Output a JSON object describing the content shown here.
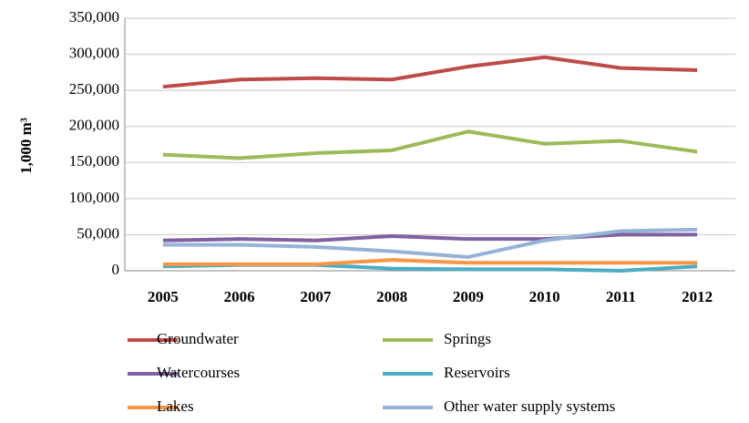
{
  "chart_data": {
    "type": "line",
    "y_label": "1,000 m³",
    "categories": [
      "2005",
      "2006",
      "2007",
      "2008",
      "2009",
      "2010",
      "2011",
      "2012"
    ],
    "series": [
      {
        "name": "Groundwater",
        "color": "#be4b48",
        "values": [
          255000,
          265000,
          267000,
          265000,
          283000,
          296000,
          281000,
          278000
        ]
      },
      {
        "name": "Springs",
        "color": "#9bbb59",
        "values": [
          161000,
          156000,
          163000,
          167000,
          193000,
          176000,
          180000,
          165000
        ]
      },
      {
        "name": "Watercourses",
        "color": "#7f60a0",
        "values": [
          42000,
          44000,
          42000,
          48000,
          44000,
          44000,
          50000,
          50000
        ]
      },
      {
        "name": "Reservoirs",
        "color": "#4bacc6",
        "values": [
          6000,
          8000,
          8000,
          3000,
          2000,
          2000,
          0,
          6000
        ]
      },
      {
        "name": "Lakes",
        "color": "#f79646",
        "values": [
          9000,
          9000,
          9000,
          15000,
          11000,
          11000,
          11000,
          11000
        ]
      },
      {
        "name": "Other water supply systems",
        "color": "#95b3d7",
        "values": [
          36000,
          36000,
          33000,
          27000,
          19000,
          42000,
          55000,
          57000
        ]
      }
    ],
    "ylim": [
      0,
      350000
    ],
    "yticks": [
      0,
      {
        "value": 50000,
        "label": "50,000"
      },
      {
        "value": 100000,
        "label": "100,000"
      },
      {
        "value": 150000,
        "label": "150,000"
      },
      {
        "value": 200000,
        "label": "200,000"
      },
      {
        "value": 250000,
        "label": "250,000"
      },
      {
        "value": 300000,
        "label": "300,000"
      },
      {
        "value": 350000,
        "label": "350,000"
      }
    ],
    "grid": true
  }
}
